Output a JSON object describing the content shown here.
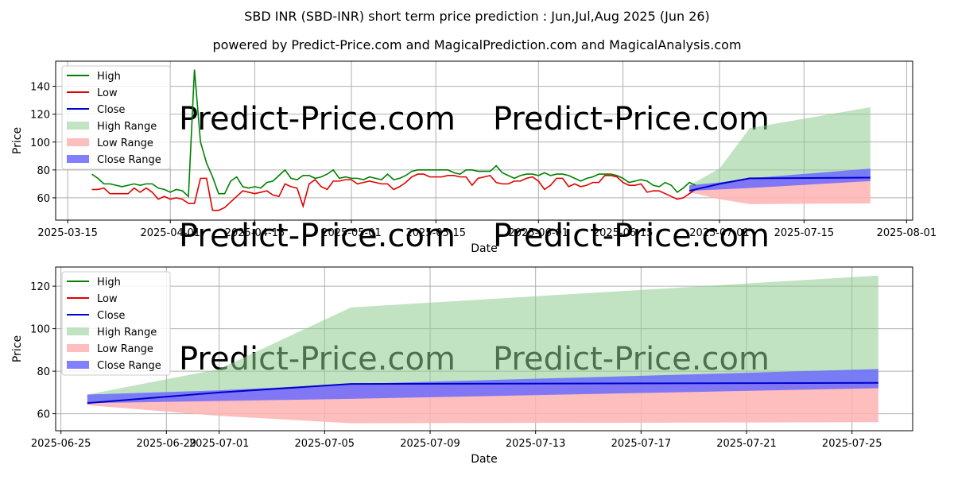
{
  "title": "SBD INR (SBD-INR) short term price prediction : Jun,Jul,Aug 2025 (Jun 26)",
  "subtitle": "powered by Predict-Price.com and MagicalPrediction.com and MagicalAnalysis.com",
  "watermark": "Predict-Price.com",
  "colors": {
    "high": "#008000",
    "low": "#e00000",
    "close": "#0000cc",
    "high_range": "#8fcc8f",
    "low_range": "#ffb3b3",
    "close_range": "#6b6bff",
    "grid": "#b0b0b0",
    "watermark": "#e8e8e8"
  },
  "chart_data": [
    {
      "type": "line",
      "xlabel": "Date",
      "ylabel": "Price",
      "ylim": [
        44,
        158
      ],
      "xlim": [
        "2025-03-13",
        "2025-08-02"
      ],
      "yticks": [
        60,
        80,
        100,
        120,
        140
      ],
      "xticks": [
        "2025-03-15",
        "2025-04-01",
        "2025-04-15",
        "2025-05-01",
        "2025-05-15",
        "2025-06-01",
        "2025-06-15",
        "2025-07-01",
        "2025-07-15",
        "2025-08-01"
      ],
      "legend": [
        "High",
        "Low",
        "Close",
        "High Range",
        "Low Range",
        "Close Range"
      ],
      "legend_position": "top-left",
      "grid": true,
      "history": {
        "start": "2025-03-19",
        "high": [
          77,
          74,
          70,
          70,
          69,
          68,
          69,
          70,
          69,
          70,
          70,
          67,
          66,
          64,
          66,
          65,
          61,
          152,
          100,
          85,
          75,
          63,
          63,
          72,
          75,
          68,
          67,
          68,
          67,
          71,
          72,
          76,
          80,
          74,
          73,
          76,
          76,
          74,
          75,
          77,
          80,
          74,
          75,
          74,
          74,
          73,
          75,
          74,
          73,
          77,
          73,
          74,
          76,
          79,
          80,
          80,
          80,
          80,
          80,
          80,
          78,
          77,
          80,
          80,
          79,
          79,
          79,
          83,
          78,
          76,
          74,
          76,
          77,
          77,
          76,
          78,
          76,
          77,
          77,
          76,
          74,
          72,
          74,
          75,
          77,
          77,
          77,
          76,
          74,
          71,
          72,
          73,
          72,
          69,
          68,
          71,
          69,
          64,
          67,
          71,
          69
        ],
        "low": [
          66,
          66,
          67,
          63,
          63,
          63,
          63,
          67,
          64,
          67,
          64,
          59,
          61,
          59,
          60,
          59,
          56,
          56,
          74,
          74,
          51,
          51,
          53,
          57,
          61,
          65,
          64,
          63,
          64,
          65,
          62,
          61,
          70,
          68,
          67,
          54,
          70,
          73,
          68,
          66,
          72,
          72,
          73,
          73,
          70,
          71,
          72,
          71,
          70,
          70,
          66,
          68,
          71,
          75,
          77,
          77,
          75,
          75,
          75,
          76,
          76,
          75,
          75,
          69,
          74,
          75,
          76,
          71,
          70,
          70,
          72,
          72,
          74,
          75,
          72,
          66,
          69,
          74,
          74,
          68,
          70,
          68,
          69,
          71,
          71,
          76,
          76,
          75,
          71,
          69,
          69,
          70,
          64,
          65,
          65,
          63,
          61,
          59,
          60,
          63,
          66
        ]
      },
      "forecast": {
        "dates": [
          "2025-06-26",
          "2025-07-01",
          "2025-07-06",
          "2025-07-26"
        ],
        "close": [
          65,
          70,
          74,
          74.5
        ],
        "high_range_upper": [
          69,
          81,
          110,
          125
        ],
        "low_range_lower": [
          64,
          59,
          55.5,
          56
        ],
        "close_range_upper": [
          69,
          71,
          74,
          81
        ],
        "close_range_lower": [
          65,
          66,
          67,
          72
        ]
      }
    },
    {
      "type": "line",
      "xlabel": "Date",
      "ylabel": "Price",
      "ylim": [
        52,
        129
      ],
      "xlim": [
        "2025-06-24.8",
        "2025-07-27.3"
      ],
      "yticks": [
        60,
        80,
        100,
        120
      ],
      "xticks": [
        "2025-06-25",
        "2025-06-29",
        "2025-07-01",
        "2025-07-05",
        "2025-07-09",
        "2025-07-13",
        "2025-07-17",
        "2025-07-21",
        "2025-07-25"
      ],
      "legend": [
        "High",
        "Low",
        "Close",
        "High Range",
        "Low Range",
        "Close Range"
      ],
      "legend_position": "top-left",
      "grid": true,
      "forecast": {
        "dates": [
          "2025-06-26",
          "2025-07-01",
          "2025-07-06",
          "2025-07-26"
        ],
        "close": [
          65,
          70,
          74,
          74.5
        ],
        "high_range_upper": [
          69,
          81,
          110,
          125
        ],
        "low_range_lower": [
          64,
          59,
          55.5,
          56
        ],
        "close_range_upper": [
          69,
          71,
          74,
          81
        ],
        "close_range_lower": [
          65,
          66,
          67,
          72
        ]
      }
    }
  ]
}
